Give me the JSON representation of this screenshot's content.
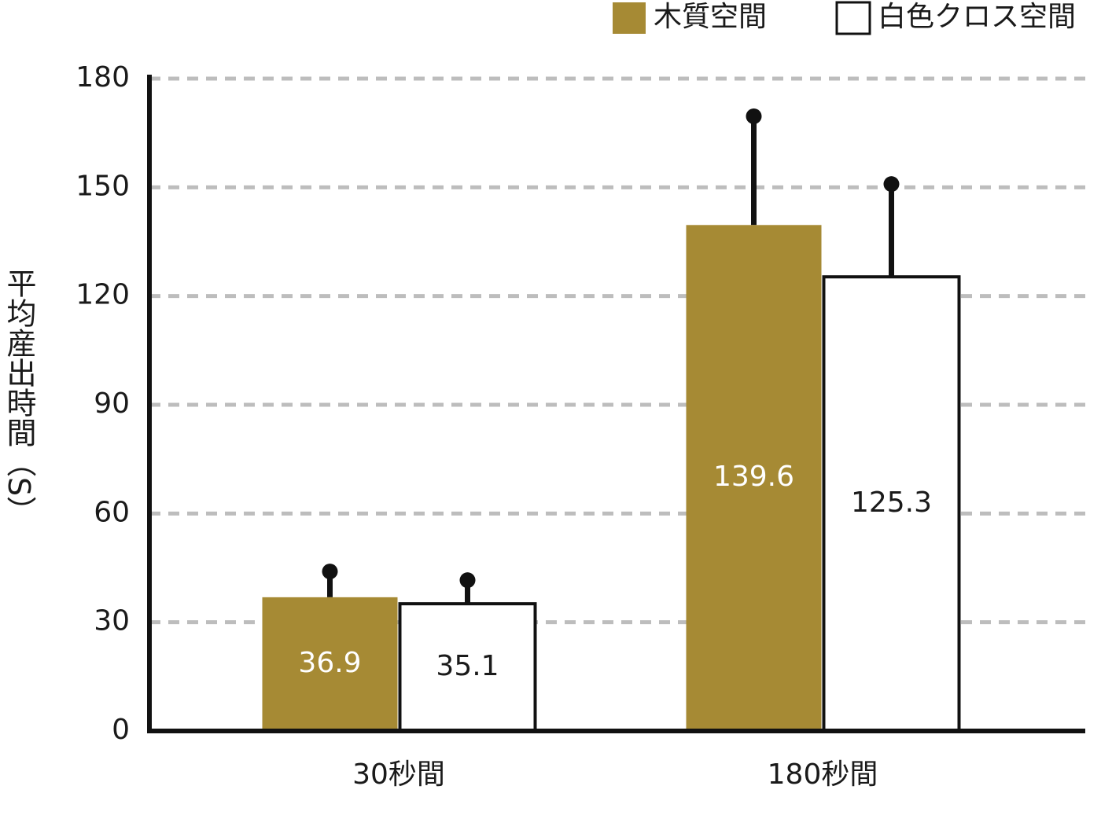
{
  "chart_data": {
    "type": "bar",
    "y_label": "平均産出時間（S）",
    "categories": [
      "30秒間",
      "180秒間"
    ],
    "series": [
      {
        "name": "木質空間",
        "color": "#a68a34",
        "values": [
          36.9,
          139.6
        ],
        "errors": [
          7.1,
          30.0
        ]
      },
      {
        "name": "白色クロス空間",
        "color": "#ffffff",
        "values": [
          35.1,
          125.3
        ],
        "errors": [
          6.5,
          25.6
        ]
      }
    ],
    "ylim": [
      0,
      180
    ],
    "yticks": [
      0,
      30,
      60,
      90,
      120,
      150,
      180
    ],
    "grid": true,
    "legend": "top-right"
  }
}
